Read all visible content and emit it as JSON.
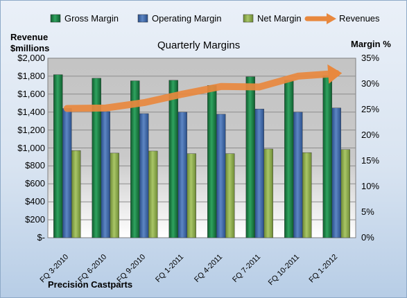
{
  "chart_data": {
    "type": "bar",
    "title": "Quarterly Margins",
    "company": "Precision Castparts",
    "left_axis": {
      "label_line1": "Revenue",
      "label_line2": "$millions",
      "min": 0,
      "max": 2000,
      "step": 200,
      "ticks": [
        "$-",
        "$200",
        "$400",
        "$600",
        "$800",
        "$1,000",
        "$1,200",
        "$1,400",
        "$1,600",
        "$1,800",
        "$2,000"
      ]
    },
    "right_axis": {
      "label": "Margin %",
      "min": 0,
      "max": 35,
      "step": 5,
      "ticks": [
        "0%",
        "5%",
        "10%",
        "15%",
        "20%",
        "25%",
        "30%",
        "35%"
      ]
    },
    "categories": [
      "FQ 3-2010",
      "FQ 6-2010",
      "FQ 9-2010",
      "FQ 1-2011",
      "FQ 4-2011",
      "FQ 7-2011",
      "FQ 10-2011",
      "FQ 1-2012"
    ],
    "series": [
      {
        "name": "Gross Margin",
        "type": "bar",
        "axis": "right",
        "color": "#1e7a45",
        "values": [
          31.8,
          31.1,
          30.6,
          30.7,
          29.7,
          31.4,
          30.7,
          31.6
        ]
      },
      {
        "name": "Operating Margin",
        "type": "bar",
        "axis": "right",
        "color": "#3f68a8",
        "values": [
          25.2,
          24.6,
          24.2,
          24.5,
          24.1,
          25.1,
          24.5,
          25.3
        ]
      },
      {
        "name": "Net Margin",
        "type": "bar",
        "axis": "right",
        "color": "#8fae4e",
        "values": [
          17.0,
          16.5,
          16.9,
          16.4,
          16.4,
          17.3,
          16.6,
          17.2
        ]
      },
      {
        "name": "Revenues",
        "type": "line",
        "axis": "left",
        "color": "#e8883e",
        "values": [
          1440,
          1445,
          1505,
          1600,
          1685,
          1680,
          1800,
          1830
        ]
      }
    ],
    "legend_position": "top",
    "grid": true
  }
}
